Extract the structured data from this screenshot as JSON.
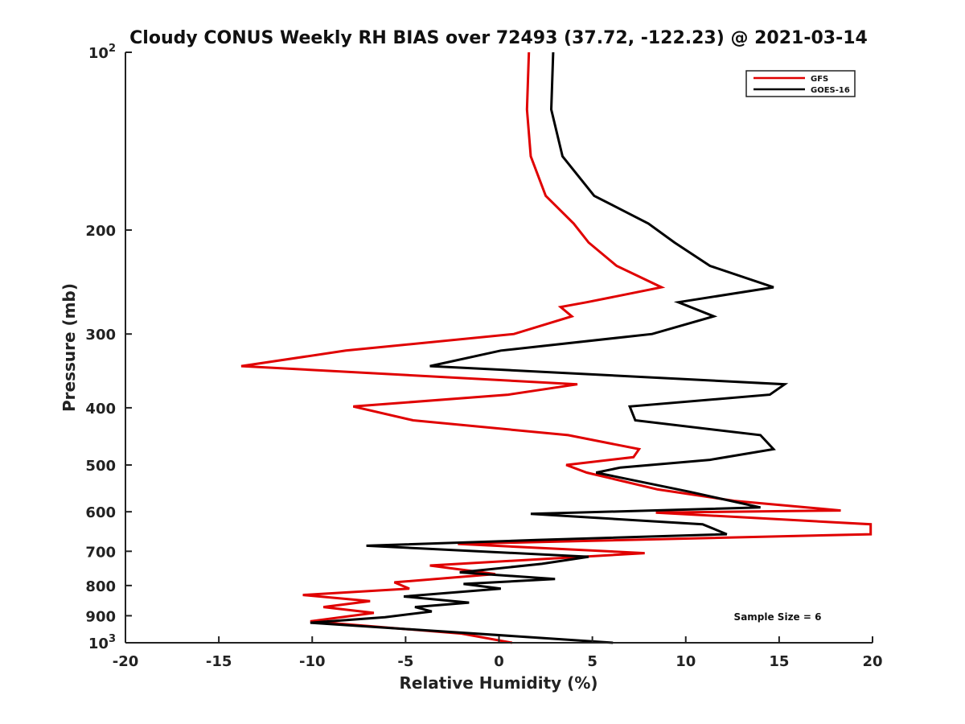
{
  "chart_data": {
    "type": "line",
    "title": "Cloudy CONUS Weekly RH BIAS over 72493 (37.72, -122.23) @ 2021-03-14",
    "xlabel": "Relative Humidity (%)",
    "ylabel": "Pressure (mb)",
    "xlim": [
      -20,
      20
    ],
    "ylim": [
      1000,
      100
    ],
    "yscale": "log",
    "y_reversed": true,
    "grid": false,
    "legend_position": "top-right",
    "x_ticks": [
      -20,
      -15,
      -10,
      -5,
      0,
      5,
      10,
      15,
      20
    ],
    "x_tick_labels": [
      "-20",
      "-15",
      "-10",
      "-5",
      "0",
      "5",
      "10",
      "15",
      "20"
    ],
    "y_ticks": [
      100,
      200,
      300,
      400,
      500,
      600,
      700,
      800,
      900,
      1000
    ],
    "y_tick_labels": [
      {
        "base": "10",
        "exp": "2"
      },
      {
        "base": "200",
        "exp": ""
      },
      {
        "base": "300",
        "exp": ""
      },
      {
        "base": "400",
        "exp": ""
      },
      {
        "base": "500",
        "exp": ""
      },
      {
        "base": "600",
        "exp": ""
      },
      {
        "base": "700",
        "exp": ""
      },
      {
        "base": "800",
        "exp": ""
      },
      {
        "base": "900",
        "exp": ""
      },
      {
        "base": "10",
        "exp": "3"
      }
    ],
    "annotation": "Sample Size = 6",
    "series": [
      {
        "name": "GFS",
        "color": "#e00000",
        "points": [
          [
            1.6,
            100
          ],
          [
            1.5,
            125
          ],
          [
            1.7,
            150
          ],
          [
            2.5,
            175
          ],
          [
            4.0,
            195
          ],
          [
            4.8,
            210
          ],
          [
            6.3,
            230
          ],
          [
            8.7,
            250
          ],
          [
            4.7,
            265
          ],
          [
            3.3,
            270
          ],
          [
            3.9,
            280
          ],
          [
            0.8,
            300
          ],
          [
            -8.2,
            320
          ],
          [
            -13.8,
            340
          ],
          [
            4.2,
            365
          ],
          [
            0.5,
            380
          ],
          [
            -7.8,
            398
          ],
          [
            -4.6,
            420
          ],
          [
            3.7,
            445
          ],
          [
            7.5,
            470
          ],
          [
            7.2,
            485
          ],
          [
            3.6,
            500
          ],
          [
            4.7,
            515
          ],
          [
            8.5,
            550
          ],
          [
            12.6,
            575
          ],
          [
            18.3,
            597
          ],
          [
            8.4,
            602
          ],
          [
            19.9,
            630
          ],
          [
            19.9,
            655
          ],
          [
            -2.2,
            680
          ],
          [
            7.8,
            705
          ],
          [
            -3.7,
            740
          ],
          [
            -0.2,
            765
          ],
          [
            -5.6,
            790
          ],
          [
            -4.8,
            810
          ],
          [
            -10.5,
            830
          ],
          [
            -6.9,
            850
          ],
          [
            -9.4,
            870
          ],
          [
            -6.7,
            890
          ],
          [
            -10.1,
            920
          ],
          [
            -2.0,
            965
          ],
          [
            0.7,
            1000
          ]
        ]
      },
      {
        "name": "GOES-16",
        "color": "#000000",
        "points": [
          [
            2.9,
            100
          ],
          [
            2.8,
            125
          ],
          [
            3.4,
            150
          ],
          [
            5.1,
            175
          ],
          [
            8.0,
            195
          ],
          [
            9.4,
            210
          ],
          [
            11.3,
            230
          ],
          [
            14.7,
            250
          ],
          [
            9.6,
            265
          ],
          [
            11.5,
            280
          ],
          [
            8.2,
            300
          ],
          [
            0.1,
            320
          ],
          [
            -3.7,
            340
          ],
          [
            15.3,
            365
          ],
          [
            14.5,
            380
          ],
          [
            7.0,
            398
          ],
          [
            7.3,
            420
          ],
          [
            14.0,
            445
          ],
          [
            14.7,
            470
          ],
          [
            11.3,
            490
          ],
          [
            6.5,
            505
          ],
          [
            5.2,
            515
          ],
          [
            10.2,
            555
          ],
          [
            14.0,
            590
          ],
          [
            1.7,
            605
          ],
          [
            10.9,
            630
          ],
          [
            12.2,
            655
          ],
          [
            2.0,
            670
          ],
          [
            -7.1,
            685
          ],
          [
            4.8,
            715
          ],
          [
            2.3,
            735
          ],
          [
            -2.1,
            760
          ],
          [
            3.0,
            780
          ],
          [
            -1.9,
            795
          ],
          [
            0.1,
            810
          ],
          [
            -5.1,
            835
          ],
          [
            -1.6,
            855
          ],
          [
            -4.5,
            870
          ],
          [
            -3.6,
            885
          ],
          [
            -6.1,
            905
          ],
          [
            -10.1,
            925
          ],
          [
            2.0,
            980
          ],
          [
            6.1,
            1000
          ]
        ]
      }
    ]
  }
}
